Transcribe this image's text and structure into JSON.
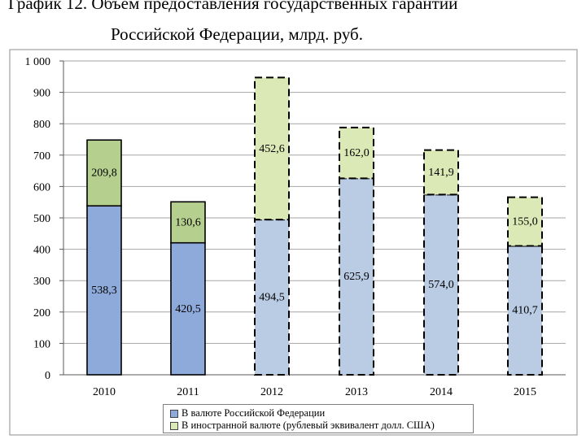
{
  "title_line1": "График 12. Объем предоставления государственных гарантий",
  "title_line2": "Российской Федерации, млрд. руб.",
  "colors": {
    "solid_bottom": "#8eaadb",
    "solid_top": "#b5cf8f",
    "dashed_bottom": "#b9cce4",
    "dashed_top": "#dbe9b7"
  },
  "chart_data": {
    "type": "bar",
    "stacked": true,
    "categories": [
      "2010",
      "2011",
      "2012",
      "2013",
      "2014",
      "2015"
    ],
    "series": [
      {
        "name": "В валюте Российской Федерации",
        "values": [
          538.3,
          420.5,
          494.5,
          625.9,
          574.0,
          410.7
        ],
        "labels": [
          "538,3",
          "420,5",
          "494,5",
          "625,9",
          "574,0",
          "410,7"
        ]
      },
      {
        "name": "В иностранной валюте (рублевый эквивалент долл. США)",
        "values": [
          209.8,
          130.6,
          452.6,
          162.0,
          141.9,
          155.0
        ],
        "labels": [
          "209,8",
          "130,6",
          "452,6",
          "162,0",
          "141,9",
          "155,0"
        ]
      }
    ],
    "dashed_categories": [
      "2012",
      "2013",
      "2014",
      "2015"
    ],
    "yticks": [
      "0",
      "100",
      "200",
      "300",
      "400",
      "500",
      "600",
      "700",
      "800",
      "900",
      "1 000"
    ],
    "ylim": [
      0,
      1000
    ],
    "grid": true,
    "legend_position": "bottom"
  }
}
